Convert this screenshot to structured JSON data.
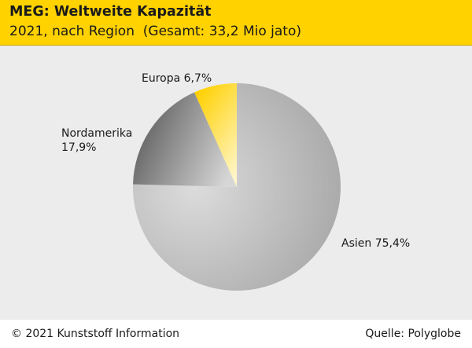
{
  "header": {
    "title": "MEG: Weltweite Kapazität",
    "subtitle": "2021, nach Region  (Gesamt: 33,2 Mio jato)"
  },
  "footer": {
    "credit": "© 2021 Kunststoff Information",
    "source": "Quelle: Polyglobe"
  },
  "chart_data": {
    "type": "pie",
    "title": "MEG: Weltweite Kapazität",
    "subtitle": "2021, nach Region  (Gesamt: 33,2 Mio jato)",
    "slices": [
      {
        "label": "Europa",
        "value": 6.7,
        "text": "Europa 6,7%",
        "color": "#ffd200"
      },
      {
        "label": "Asien",
        "value": 75.4,
        "text": "Asien 75,4%",
        "color": "#b4b4b4"
      },
      {
        "label": "Nordamerika",
        "value": 17.9,
        "text": "Nordamerika\n17,9%",
        "color": "#7a7a7a"
      }
    ]
  }
}
